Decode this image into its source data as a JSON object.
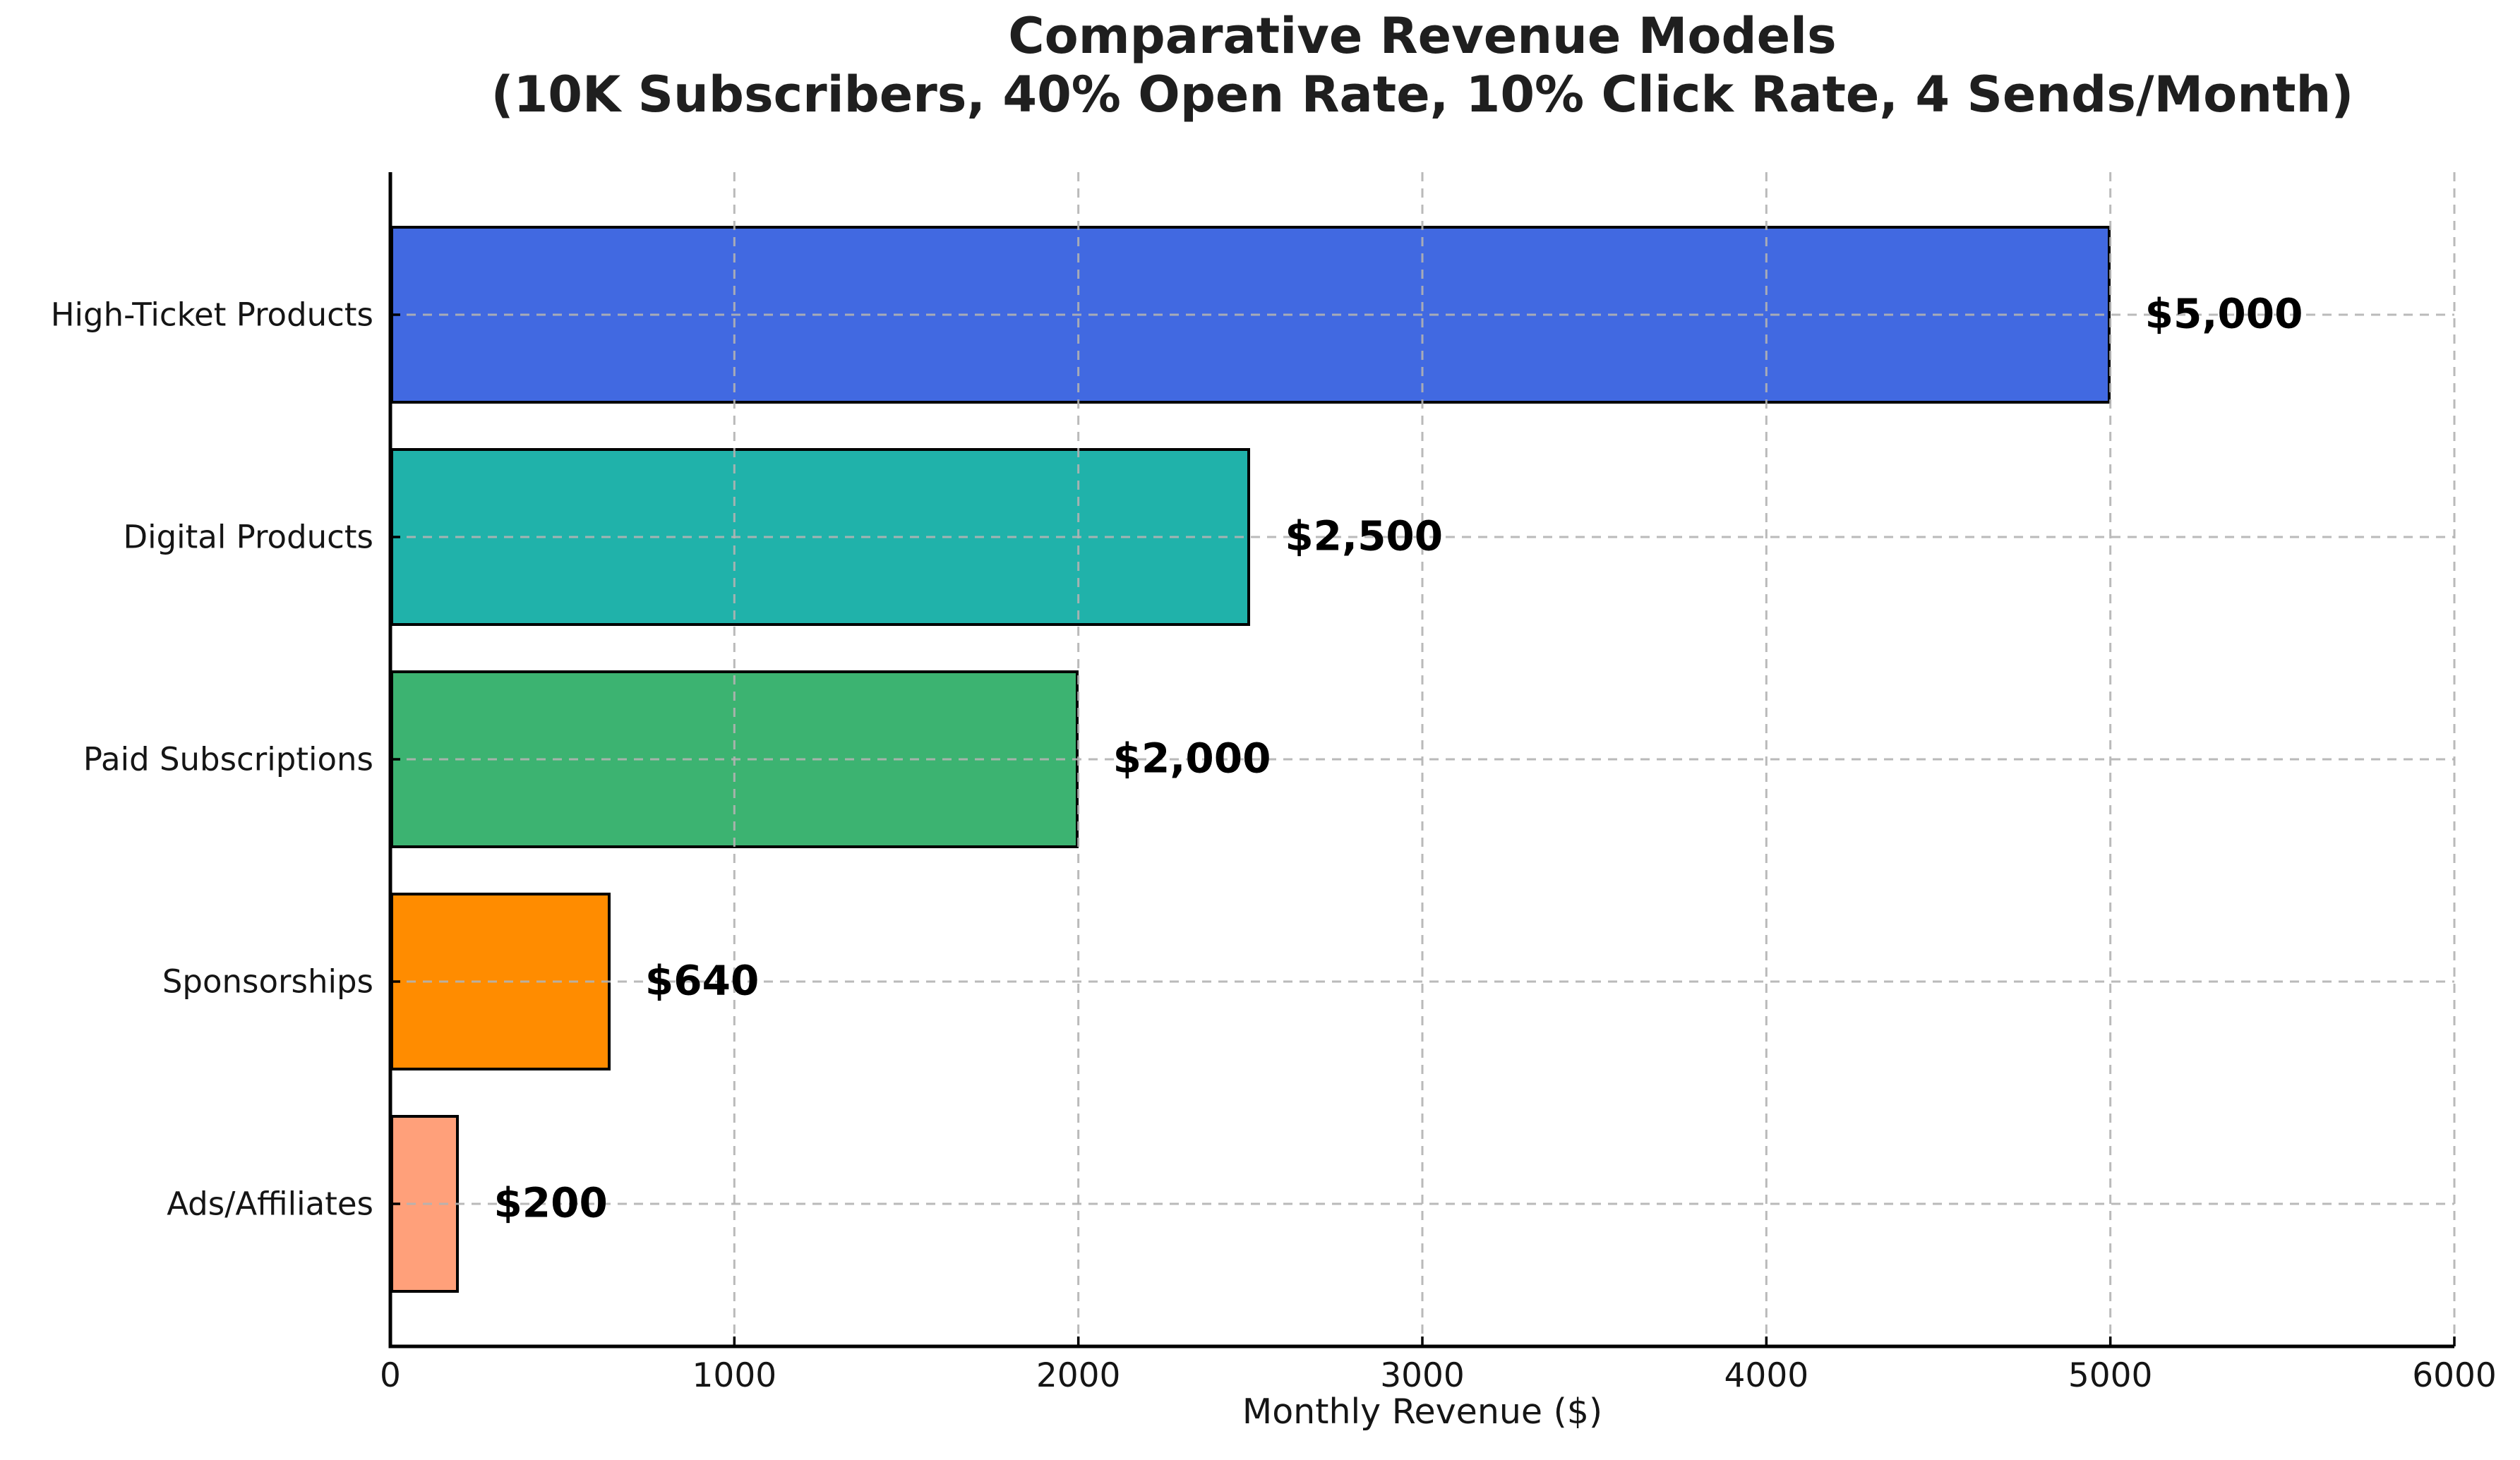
{
  "chart_data": {
    "type": "bar",
    "orientation": "horizontal",
    "title": "Comparative Revenue Models",
    "subtitle": "(10K Subscribers, 40% Open Rate, 10% Click Rate, 4 Sends/Month)",
    "xlabel": "Monthly Revenue ($)",
    "ylabel": "",
    "categories": [
      "High-Ticket Products",
      "Digital Products",
      "Paid Subscriptions",
      "Sponsorships",
      "Ads/Affiliates"
    ],
    "values": [
      5000,
      2500,
      2000,
      640,
      200
    ],
    "value_labels": [
      "$5,000",
      "$2,500",
      "$2,000",
      "$640",
      "$200"
    ],
    "bar_colors": [
      "#4169e1",
      "#20b2aa",
      "#3cb371",
      "#ff8c00",
      "#ffa07a"
    ],
    "bar_edge_color": "#000000",
    "xlim": [
      0,
      6000
    ],
    "xticks": [
      "0",
      "1000",
      "2000",
      "3000",
      "4000",
      "5000",
      "6000"
    ],
    "xtick_values": [
      0,
      1000,
      2000,
      3000,
      4000,
      5000,
      6000
    ],
    "grid": "dashed x and y gridlines, drawn above bars",
    "gridline_color": "#c8c8c8",
    "legend_position": "none",
    "background_color": "#ffffff",
    "text_color": "#1a1a1a"
  }
}
